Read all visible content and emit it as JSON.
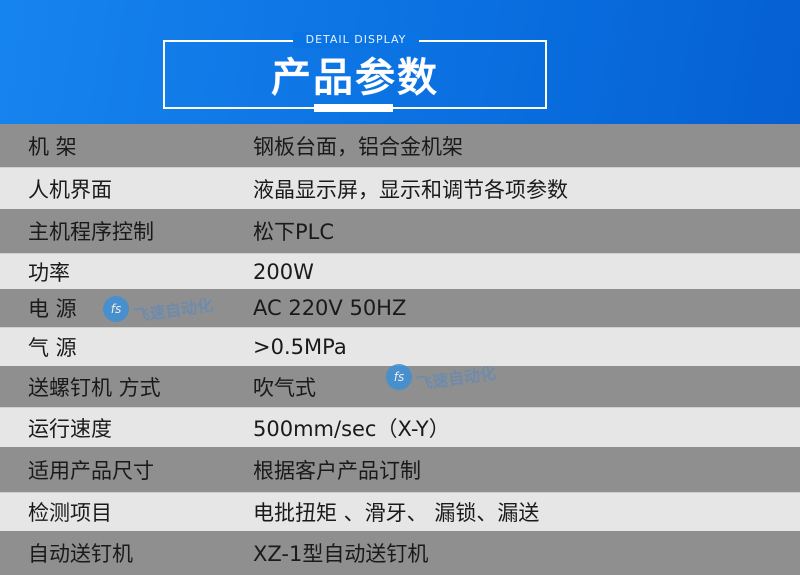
{
  "header": {
    "subtitle": "DETAIL DISPLAY",
    "title": "产品参数"
  },
  "rows": [
    {
      "key": "机 架",
      "value": "钢板台面，铝合金机架"
    },
    {
      "key": "人机界面",
      "value": "液晶显示屏，显示和调节各项参数"
    },
    {
      "key": "主机程序控制",
      "value": "松下PLC"
    },
    {
      "key": "功率",
      "value": "200W"
    },
    {
      "key": "电 源",
      "value": "AC 220V 50HZ"
    },
    {
      "key": "气 源",
      "value": ">0.5MPa"
    },
    {
      "key": "送螺钉机 方式",
      "value": "吹气式"
    },
    {
      "key": "运行速度",
      "value": "500mm/sec（X-Y）"
    },
    {
      "key": "适用产品尺寸",
      "value": "根据客户产品订制"
    },
    {
      "key": "检测项目",
      "value": "电批扭矩 、滑牙、 漏锁、漏送"
    },
    {
      "key": "自动送钉机",
      "value": "XZ-1型自动送钉机"
    }
  ],
  "watermark": {
    "text": "飞速自动化",
    "logo": "fs"
  },
  "colors": {
    "header": "#0a6fe0",
    "row_dark": "#8f8f8f",
    "row_light": "#e6e6e6"
  }
}
